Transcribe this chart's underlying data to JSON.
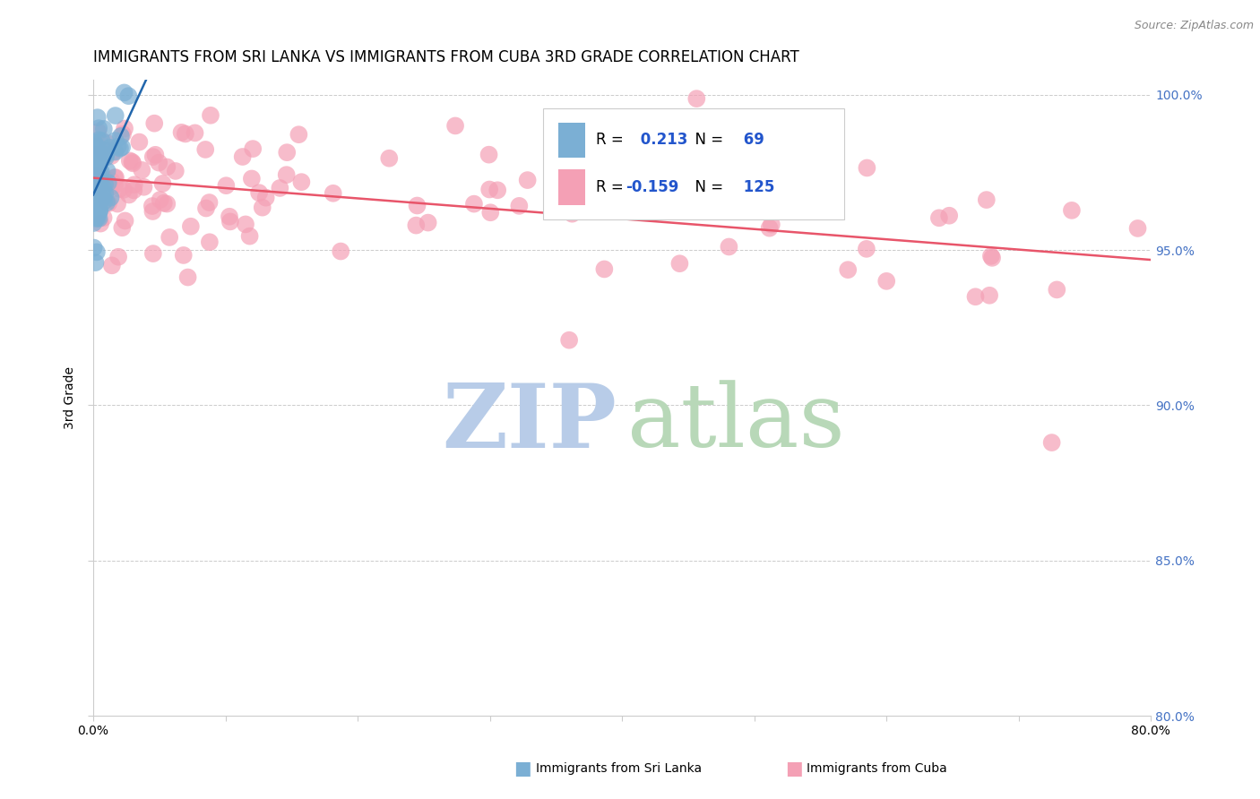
{
  "title": "IMMIGRANTS FROM SRI LANKA VS IMMIGRANTS FROM CUBA 3RD GRADE CORRELATION CHART",
  "source": "Source: ZipAtlas.com",
  "ylabel": "3rd Grade",
  "x_min": 0.0,
  "x_max": 0.8,
  "y_min": 0.8,
  "y_max": 1.005,
  "sri_lanka_R": 0.213,
  "sri_lanka_N": 69,
  "cuba_R": -0.159,
  "cuba_N": 125,
  "sri_lanka_color": "#7bafd4",
  "cuba_color": "#f4a0b5",
  "sri_lanka_line_color": "#2166ac",
  "cuba_line_color": "#e8556a",
  "background_color": "#ffffff",
  "grid_color": "#cccccc",
  "right_axis_color": "#4472c4",
  "title_fontsize": 12,
  "axis_label_fontsize": 10,
  "tick_fontsize": 10,
  "zip_watermark_color": "#b8cce8",
  "atlas_watermark_color": "#b8d8b8"
}
